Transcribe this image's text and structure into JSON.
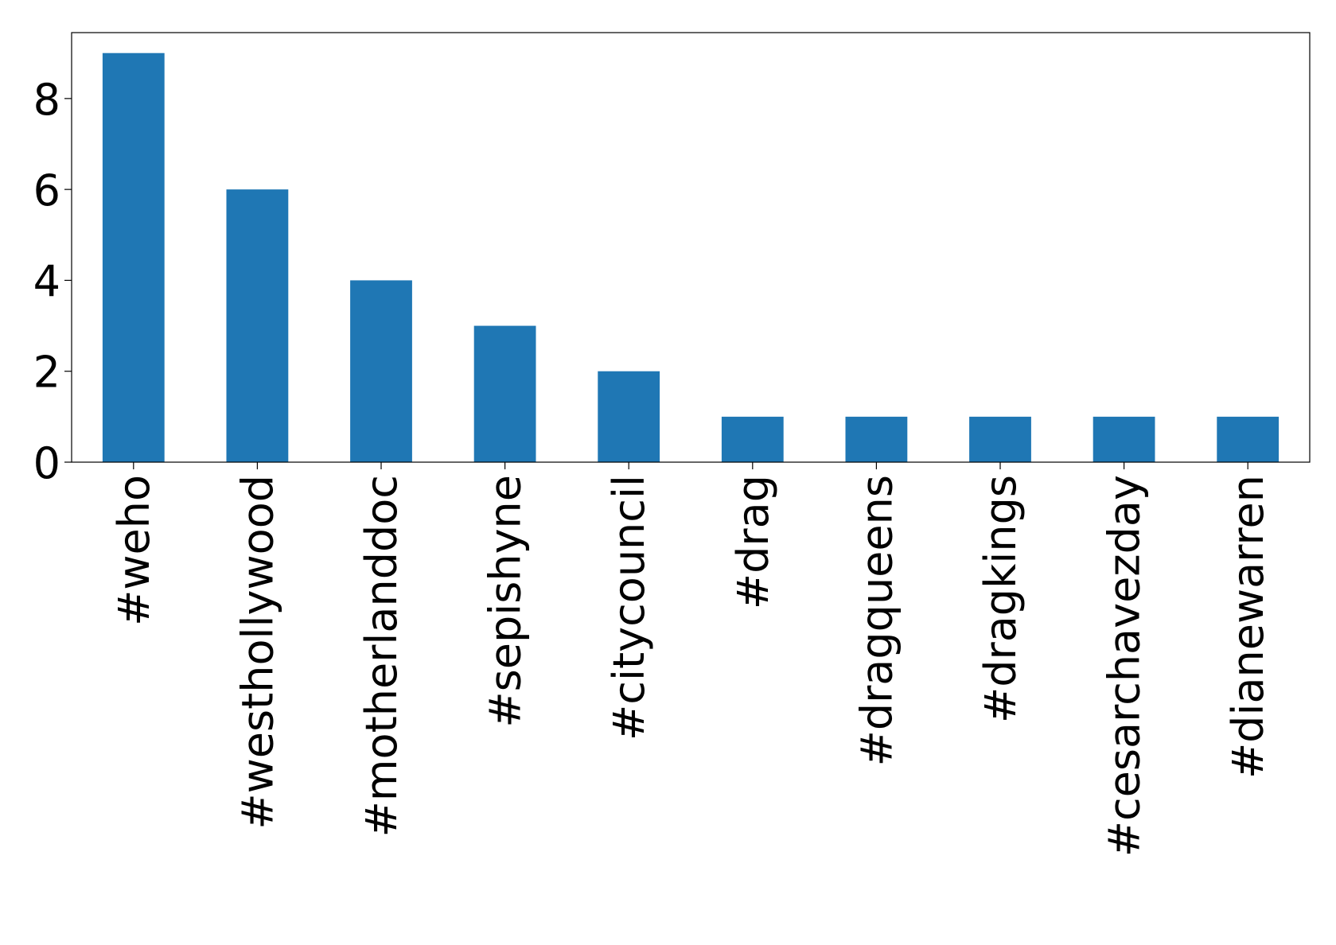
{
  "chart_data": {
    "type": "bar",
    "title": "",
    "xlabel": "",
    "ylabel": "",
    "categories": [
      "#weho",
      "#westhollywood",
      "#motherlanddoc",
      "#sepishyne",
      "#citycouncil",
      "#drag",
      "#dragqueens",
      "#dragkings",
      "#cesarchavezday",
      "#dianewarren"
    ],
    "values": [
      9,
      6,
      4,
      3,
      2,
      1,
      1,
      1,
      1,
      1
    ],
    "ylim": [
      0,
      9.45
    ],
    "yticks": [
      0,
      2,
      4,
      6,
      8
    ],
    "bar_color": "#1f77b4",
    "grid": false,
    "legend": false
  }
}
